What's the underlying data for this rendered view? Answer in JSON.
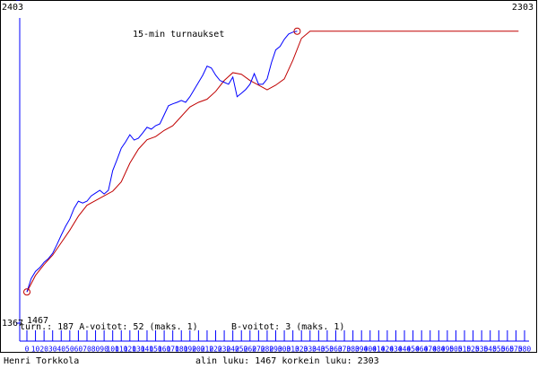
{
  "chart_data": {
    "type": "line",
    "title": "15-min turnaukset",
    "author": "Henri Torkkola",
    "stats_a": "turn.: 187 A-voitot: 52  (maks. 1)",
    "stats_b": "B-voitot: 3  (maks. 1)",
    "range_text": "alin luku: 1467  korkein luku: 2303",
    "start_label": "1467",
    "max_label": "2303",
    "ylim": [
      1367,
      2403
    ],
    "yticks": [
      1367,
      2403
    ],
    "xlim": [
      0,
      580
    ],
    "xticks": [
      0,
      10,
      20,
      30,
      40,
      50,
      60,
      70,
      80,
      90,
      100,
      110,
      120,
      130,
      140,
      150,
      160,
      170,
      180,
      190,
      200,
      210,
      220,
      230,
      240,
      250,
      260,
      270,
      280,
      290,
      300,
      310,
      320,
      330,
      340,
      350,
      360,
      370,
      380,
      390,
      400,
      410,
      420,
      430,
      440,
      450,
      460,
      470,
      480,
      490,
      500,
      510,
      520,
      530,
      540,
      550,
      560,
      570,
      580
    ],
    "series": [
      {
        "color": "#0000ff",
        "x": [
          0,
          5,
          10,
          15,
          20,
          25,
          30,
          35,
          40,
          45,
          50,
          55,
          60,
          65,
          70,
          75,
          80,
          85,
          90,
          95,
          100,
          105,
          110,
          115,
          120,
          125,
          130,
          135,
          140,
          145,
          150,
          155,
          160,
          165,
          170,
          175,
          180,
          185,
          190,
          195,
          200,
          205,
          210,
          215,
          220,
          225,
          230,
          235,
          240,
          245,
          250,
          255,
          260,
          265,
          270,
          275,
          280,
          285,
          290,
          295,
          300,
          305,
          310,
          315
        ],
        "values": [
          1467,
          1510,
          1533,
          1545,
          1562,
          1574,
          1591,
          1619,
          1649,
          1677,
          1701,
          1735,
          1758,
          1752,
          1758,
          1775,
          1784,
          1793,
          1781,
          1793,
          1856,
          1891,
          1928,
          1948,
          1971,
          1954,
          1960,
          1977,
          1995,
          1989,
          2000,
          2006,
          2035,
          2064,
          2070,
          2075,
          2081,
          2075,
          2093,
          2116,
          2139,
          2162,
          2191,
          2185,
          2162,
          2145,
          2139,
          2133,
          2156,
          2093,
          2104,
          2116,
          2133,
          2167,
          2133,
          2133,
          2150,
          2202,
          2243,
          2254,
          2277,
          2294,
          2300,
          2303
        ]
      },
      {
        "color": "#c00000",
        "x": [
          0,
          10,
          20,
          30,
          40,
          50,
          60,
          70,
          80,
          90,
          100,
          110,
          120,
          130,
          140,
          150,
          160,
          170,
          180,
          190,
          200,
          210,
          220,
          230,
          240,
          250,
          260,
          270,
          280,
          290,
          300,
          310,
          320,
          330,
          573
        ],
        "values": [
          1467,
          1520,
          1555,
          1585,
          1625,
          1665,
          1710,
          1745,
          1760,
          1775,
          1790,
          1820,
          1880,
          1925,
          1955,
          1965,
          1985,
          2000,
          2030,
          2060,
          2075,
          2085,
          2110,
          2145,
          2170,
          2165,
          2145,
          2130,
          2115,
          2130,
          2150,
          2210,
          2280,
          2303,
          2303
        ]
      }
    ]
  }
}
